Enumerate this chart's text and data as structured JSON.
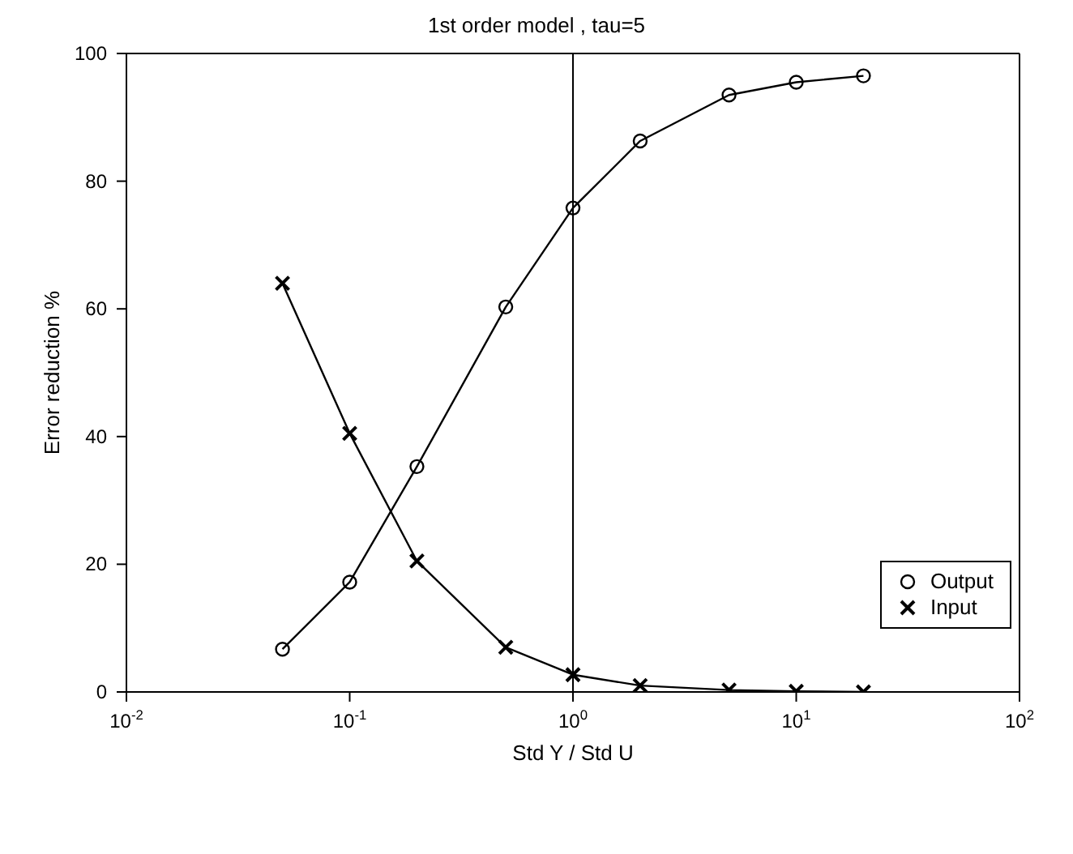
{
  "chart_data": {
    "type": "line",
    "title": "1st order model , tau=5",
    "xlabel": "Std Y / Std U",
    "ylabel": "Error reduction %",
    "log": "x",
    "xlim": [
      0.01,
      100
    ],
    "xticks": [
      {
        "value": 0.01,
        "label": "10$^{-2}$"
      },
      {
        "value": 0.1,
        "label": "10$^{-1}$"
      },
      {
        "value": 1,
        "label": "10$^{0}$"
      },
      {
        "value": 10,
        "label": "10$^{1}$"
      },
      {
        "value": 100,
        "label": "10$^{2}$"
      }
    ],
    "ylim": [
      0,
      100
    ],
    "yticks": [
      0,
      20,
      40,
      60,
      80,
      100
    ],
    "grid": false,
    "legend": "right",
    "ref_lines": [
      {
        "axis": "x",
        "value": 1,
        "color": "#000000"
      }
    ],
    "series": [
      {
        "name": "Output",
        "color": "#000000",
        "marker": "circle",
        "x": [
          0.05,
          0.1,
          0.2,
          0.5,
          1,
          2,
          5,
          10,
          20
        ],
        "values": [
          6.7,
          17.2,
          35.3,
          60.3,
          75.8,
          86.3,
          93.5,
          95.5,
          96.5
        ]
      },
      {
        "name": "Input",
        "color": "#000000",
        "marker": "cross",
        "x": [
          0.05,
          0.1,
          0.2,
          0.5,
          1,
          2,
          5,
          10,
          20
        ],
        "values": [
          64,
          40.5,
          20.5,
          7,
          2.7,
          1,
          0.3,
          0.1,
          0
        ]
      }
    ]
  }
}
